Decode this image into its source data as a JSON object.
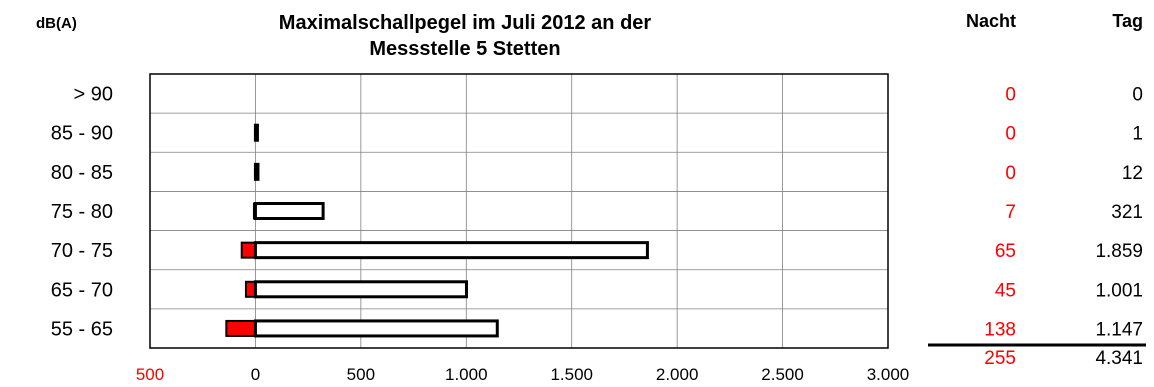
{
  "chart_data": {
    "type": "bar",
    "title_lines": [
      "Maximalschallpegel im Juli 2012 an der",
      "Messstelle 5 Stetten"
    ],
    "unit_label": "dB(A)",
    "orientation": "horizontal",
    "categories": [
      "> 90",
      "85 - 90",
      "80 - 85",
      "75 - 80",
      "70 - 75",
      "65 - 70",
      "55 - 65"
    ],
    "series": [
      {
        "name": "Nacht",
        "values": [
          0,
          0,
          0,
          7,
          65,
          45,
          138
        ],
        "color": "#ff0000",
        "direction": "negative"
      },
      {
        "name": "Tag",
        "values": [
          0,
          1,
          12,
          321,
          1859,
          1001,
          1147
        ],
        "color": "#ffffff",
        "direction": "positive"
      }
    ],
    "xlim": [
      -500,
      3000
    ],
    "x_ticks": [
      -500,
      0,
      500,
      1000,
      1500,
      2000,
      2500,
      3000
    ],
    "x_tick_labels": [
      "500",
      "0",
      "500",
      "1.000",
      "1.500",
      "2.000",
      "2.500",
      "3.000"
    ],
    "grid": true
  },
  "table": {
    "header_night": "Nacht",
    "header_day": "Tag",
    "night": [
      "0",
      "0",
      "0",
      "7",
      "65",
      "45",
      "138"
    ],
    "day": [
      "0",
      "1",
      "12",
      "321",
      "1.859",
      "1.001",
      "1.147"
    ],
    "total_night": "255",
    "total_day": "4.341"
  },
  "colors": {
    "night": "#ff0000",
    "day_fill": "#ffffff",
    "outline": "#000000",
    "grid": "#808080"
  }
}
